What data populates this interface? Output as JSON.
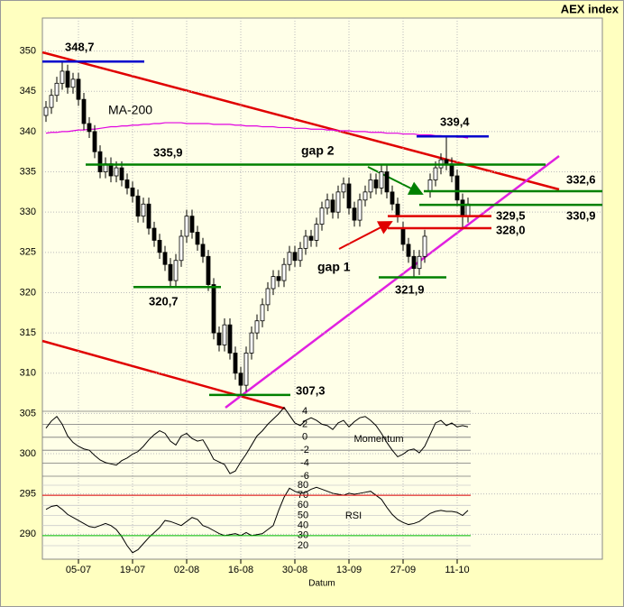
{
  "chart_data": [
    {
      "type": "candlestick",
      "title": "AEX index",
      "x_label": "Datum",
      "categories": [
        "25-06",
        "28-06",
        "29-06",
        "30-06",
        "01-07",
        "02-07",
        "05-07",
        "06-07",
        "07-07",
        "08-07",
        "09-07",
        "12-07",
        "13-07",
        "14-07",
        "15-07",
        "16-07",
        "19-07",
        "20-07",
        "21-07",
        "22-07",
        "23-07",
        "26-07",
        "27-07",
        "28-07",
        "29-07",
        "30-07",
        "02-08",
        "03-08",
        "04-08",
        "05-08",
        "06-08",
        "09-08",
        "10-08",
        "11-08",
        "12-08",
        "13-08",
        "16-08",
        "17-08",
        "18-08",
        "19-08",
        "20-08",
        "23-08",
        "24-08",
        "25-08",
        "26-08",
        "27-08",
        "30-08",
        "31-08",
        "01-09",
        "02-09",
        "03-09",
        "06-09",
        "07-09",
        "08-09",
        "09-09",
        "10-09",
        "13-09",
        "14-09",
        "15-09",
        "16-09",
        "17-09",
        "20-09",
        "21-09",
        "22-09",
        "23-09",
        "24-09",
        "27-09",
        "28-09",
        "29-09",
        "30-09",
        "01-10",
        "04-10",
        "05-10",
        "06-10",
        "07-10",
        "08-10",
        "11-10",
        "12-10",
        "13-10"
      ],
      "open": [
        342.0,
        343.0,
        344.5,
        346.0,
        347.5,
        345.5,
        346.5,
        344.0,
        341.0,
        340.0,
        337.5,
        335.0,
        336.0,
        334.5,
        335.5,
        334.0,
        333.0,
        332.0,
        329.5,
        331.0,
        328.0,
        326.5,
        325.0,
        323.5,
        321.5,
        324.0,
        327.0,
        329.5,
        327.5,
        326.0,
        324.5,
        321.0,
        315.0,
        313.5,
        316.0,
        312.5,
        310.0,
        308.5,
        312.5,
        315.0,
        316.5,
        318.5,
        320.5,
        322.0,
        321.5,
        323.5,
        325.0,
        324.0,
        325.5,
        327.0,
        326.5,
        328.5,
        330.5,
        331.5,
        330.0,
        332.5,
        333.5,
        330.5,
        329.0,
        331.5,
        332.5,
        334.0,
        333.0,
        335.0,
        332.5,
        331.0,
        328.0,
        326.0,
        324.5,
        323.0,
        324.5,
        332.6,
        334.0,
        335.5,
        336.5,
        336.0,
        334.5,
        331.5,
        329.5
      ],
      "high": [
        343.8,
        345.3,
        346.8,
        348.7,
        348.3,
        347.3,
        347.3,
        344.8,
        341.8,
        340.8,
        338.3,
        336.8,
        336.8,
        336.3,
        336.3,
        334.8,
        333.8,
        332.8,
        331.8,
        331.8,
        328.8,
        327.3,
        325.8,
        324.3,
        324.8,
        327.8,
        330.3,
        330.3,
        328.3,
        326.8,
        325.3,
        321.8,
        315.8,
        316.8,
        316.8,
        313.3,
        310.8,
        313.3,
        315.8,
        317.3,
        319.3,
        321.3,
        322.8,
        322.8,
        324.3,
        325.8,
        325.8,
        326.3,
        327.8,
        327.8,
        329.3,
        331.3,
        332.3,
        332.3,
        333.3,
        334.3,
        334.3,
        331.3,
        332.3,
        333.3,
        334.8,
        334.8,
        335.8,
        335.8,
        333.3,
        331.8,
        328.8,
        326.8,
        325.3,
        325.3,
        327.8,
        334.8,
        336.3,
        337.3,
        339.4,
        336.8,
        335.3,
        332.3,
        331.8
      ],
      "low": [
        341.2,
        342.2,
        343.7,
        345.2,
        344.7,
        344.7,
        343.2,
        340.2,
        339.2,
        336.7,
        334.2,
        334.2,
        333.7,
        333.7,
        333.2,
        332.2,
        331.2,
        328.7,
        328.7,
        327.2,
        325.7,
        324.2,
        322.7,
        320.7,
        320.7,
        323.2,
        326.2,
        326.7,
        325.2,
        323.7,
        320.2,
        314.2,
        312.7,
        312.7,
        311.7,
        309.2,
        307.3,
        307.7,
        311.7,
        314.2,
        315.7,
        317.7,
        319.7,
        320.7,
        320.7,
        322.7,
        323.2,
        323.2,
        324.7,
        325.7,
        325.7,
        327.7,
        329.7,
        329.2,
        329.2,
        331.7,
        329.7,
        328.2,
        328.2,
        330.7,
        331.7,
        332.2,
        332.2,
        331.7,
        330.2,
        328.7,
        325.2,
        323.7,
        321.9,
        322.2,
        323.7,
        331.8,
        333.2,
        334.7,
        335.2,
        333.7,
        330.7,
        328.0,
        328.7
      ],
      "close": [
        343.0,
        344.5,
        346.0,
        347.5,
        345.5,
        346.5,
        344.0,
        341.0,
        340.0,
        337.5,
        335.0,
        336.0,
        334.5,
        335.5,
        334.0,
        333.0,
        332.0,
        329.5,
        331.0,
        328.0,
        326.5,
        325.0,
        323.5,
        321.5,
        324.0,
        327.0,
        329.5,
        327.5,
        326.0,
        324.5,
        321.0,
        315.0,
        313.5,
        316.0,
        312.5,
        310.0,
        308.5,
        312.5,
        315.0,
        316.5,
        318.5,
        320.5,
        322.0,
        321.5,
        323.5,
        325.0,
        324.0,
        325.5,
        327.0,
        326.5,
        328.5,
        330.5,
        331.5,
        330.0,
        332.5,
        333.5,
        330.5,
        329.0,
        331.5,
        332.5,
        334.0,
        333.0,
        335.0,
        332.5,
        331.0,
        329.5,
        326.0,
        324.5,
        323.0,
        324.5,
        327.0,
        334.0,
        335.5,
        336.5,
        336.0,
        334.5,
        331.5,
        329.5,
        331.0
      ],
      "series": [
        {
          "name": "MA-200",
          "color": "#e000e0",
          "values": [
            339.8,
            339.9,
            339.9,
            340.0,
            340.0,
            340.1,
            340.2,
            340.2,
            340.3,
            340.3,
            340.4,
            340.5,
            340.6,
            340.6,
            340.7,
            340.7,
            340.8,
            340.8,
            340.9,
            340.9,
            341.0,
            341.0,
            341.1,
            341.1,
            341.1,
            341.1,
            341.0,
            341.0,
            341.0,
            341.0,
            341.0,
            340.9,
            340.9,
            340.9,
            340.9,
            340.8,
            340.8,
            340.7,
            340.7,
            340.7,
            340.6,
            340.6,
            340.6,
            340.5,
            340.5,
            340.5,
            340.4,
            340.4,
            340.4,
            340.3,
            340.3,
            340.3,
            340.2,
            340.2,
            340.1,
            340.1,
            340.1,
            340.0,
            340.0,
            340.0,
            339.9,
            339.9,
            339.9,
            339.8,
            339.8,
            339.8,
            339.7,
            339.7,
            339.7,
            339.6,
            339.6,
            339.6,
            339.5,
            339.5,
            339.4,
            339.4,
            339.3,
            339.3,
            339.2
          ]
        }
      ],
      "ylim": [
        286.9,
        354.1
      ],
      "yticks": [
        290,
        295,
        300,
        305,
        310,
        315,
        320,
        325,
        330,
        335,
        340,
        345,
        350
      ],
      "xticks": [
        "05-07",
        "19-07",
        "02-08",
        "16-08",
        "30-08",
        "13-09",
        "27-09",
        "11-10"
      ],
      "grid": true,
      "levels": [
        {
          "value": 348.7,
          "label": "348,7",
          "color": "#0000cc"
        },
        {
          "value": 339.4,
          "label": "339,4",
          "color": "#0000cc"
        },
        {
          "value": 335.9,
          "label": "335,9",
          "color": "#008000"
        },
        {
          "value": 332.6,
          "label": "332,6",
          "color": "#008000"
        },
        {
          "value": 330.9,
          "label": "330,9",
          "color": "#008000"
        },
        {
          "value": 329.5,
          "label": "329,5",
          "color": "#e00000"
        },
        {
          "value": 328.0,
          "label": "328,0",
          "color": "#e00000"
        },
        {
          "value": 321.9,
          "label": "321,9",
          "color": "#008000"
        },
        {
          "value": 320.7,
          "label": "320,7",
          "color": "#008000"
        },
        {
          "value": 307.3,
          "label": "307,3",
          "color": "#008000"
        }
      ],
      "annotations": [
        {
          "text": "gap 1",
          "color": "#e00000"
        },
        {
          "text": "gap 2",
          "color": "#008000"
        }
      ]
    },
    {
      "type": "line",
      "name": "Momentum",
      "color": "#000000",
      "values": [
        1.4,
        2.5,
        3.2,
        2,
        0.2,
        -0.8,
        -1.4,
        -1.8,
        -2,
        -2.8,
        -3.5,
        -3.9,
        -4.1,
        -4.3,
        -3.6,
        -3.2,
        -2.6,
        -2.2,
        -1.4,
        -0.4,
        0.4,
        1,
        0.6,
        -0.6,
        -1.2,
        0.2,
        0.6,
        -0.2,
        -0.6,
        -0.4,
        -1.8,
        -3.4,
        -3.8,
        -4.2,
        -5.6,
        -5.2,
        -3.8,
        -2.6,
        -1.2,
        0.2,
        1,
        2,
        2.8,
        3.6,
        4.6,
        3.4,
        2.2,
        1.8,
        2.6,
        3,
        2.6,
        2,
        1.8,
        1.2,
        2.2,
        2.6,
        1.6,
        2.4,
        3,
        3.2,
        2.6,
        1.8,
        0.6,
        -0.8,
        -2,
        -3,
        -2.6,
        -2,
        -1.8,
        -2.4,
        -1.4,
        0.4,
        2.2,
        2.6,
        1.8,
        2.2,
        1.6,
        1.8,
        1.6
      ],
      "ylim": [
        -6,
        4
      ],
      "yticks": [
        4,
        2,
        0,
        -2,
        -4,
        -6
      ]
    },
    {
      "type": "line",
      "name": "RSI",
      "color": "#000000",
      "values": [
        56,
        59,
        60,
        56,
        51,
        48,
        45,
        42,
        39,
        38,
        40,
        42,
        40,
        36,
        29,
        20,
        13,
        16,
        22,
        28,
        33,
        38,
        45,
        44,
        42,
        40,
        44,
        48,
        46,
        40,
        38,
        35,
        32,
        30,
        31,
        32,
        30,
        33,
        30,
        31,
        32,
        36,
        40,
        55,
        68,
        77,
        74,
        72,
        73,
        76,
        78,
        76,
        74,
        72,
        71,
        70,
        72,
        71,
        72,
        73,
        74,
        70,
        66,
        58,
        51,
        46,
        43,
        41,
        42,
        44,
        48,
        52,
        54,
        55,
        54,
        54,
        53,
        50,
        55
      ],
      "ylim": [
        20,
        80
      ],
      "yticks": [
        80,
        70,
        60,
        50,
        40,
        30,
        20
      ],
      "ref_lines": [
        {
          "value": 70,
          "color": "#e00000"
        },
        {
          "value": 30,
          "color": "#00c000"
        }
      ]
    }
  ]
}
